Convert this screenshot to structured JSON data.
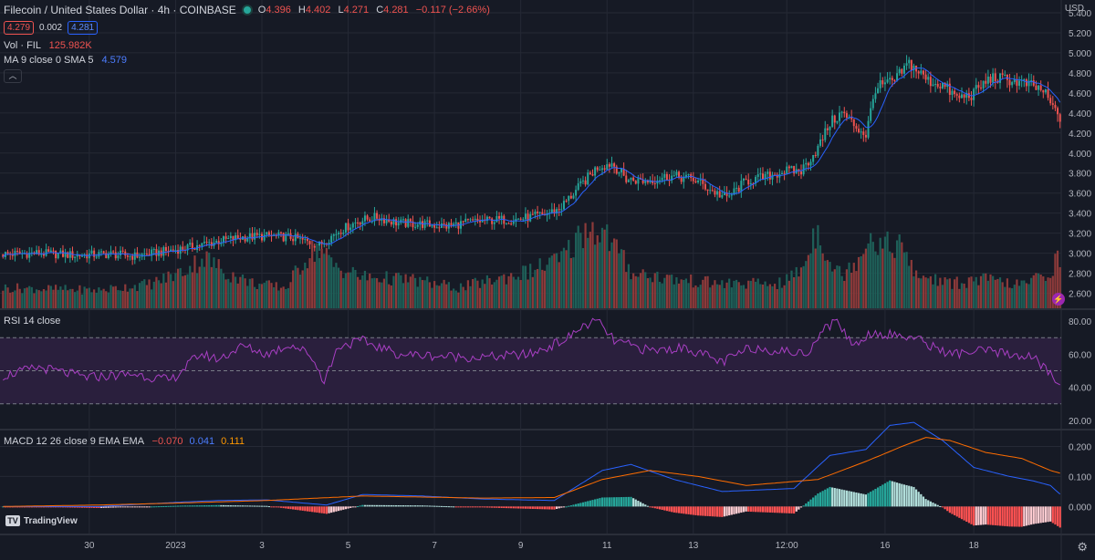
{
  "header": {
    "title": "Filecoin / United States Dollar · 4h · COINBASE",
    "o_label": "O",
    "o": "4.396",
    "h_label": "H",
    "h": "4.402",
    "l_label": "L",
    "l": "4.271",
    "c_label": "C",
    "c": "4.281",
    "change": "−0.117 (−2.66%)",
    "bid": "4.279",
    "spread": "0.002",
    "ask": "4.281",
    "currency": "USD"
  },
  "indicators": {
    "vol_label": "Vol · FIL",
    "vol_value": "125.982K",
    "ma_label": "MA 9 close 0 SMA 5",
    "ma_value": "4.579",
    "rsi_label": "RSI 14 close",
    "macd_label": "MACD 12 26 close 9 EMA EMA",
    "macd_hist": "−0.070",
    "macd_line": "0.041",
    "macd_signal": "0.111"
  },
  "branding": {
    "logo_text": "TradingView",
    "logo_mark": "TV"
  },
  "colors": {
    "up": "#26a69a",
    "down": "#ef5350",
    "ma": "#2962ff",
    "rsi": "#a93fc4",
    "signal": "#ff6d00",
    "macd": "#2962ff",
    "bg": "#161a25",
    "grid": "#252935"
  },
  "chart_data": {
    "type": "candlestick",
    "x_ticks": [
      "30",
      "2023",
      "3",
      "5",
      "7",
      "9",
      "11",
      "13",
      "12:00",
      "16",
      "18"
    ],
    "price_axis": {
      "ylim": [
        2.45,
        5.4
      ],
      "ticks": [
        "5.400",
        "5.200",
        "5.000",
        "4.800",
        "4.600",
        "4.400",
        "4.200",
        "4.000",
        "3.800",
        "3.600",
        "3.400",
        "3.200",
        "3.000",
        "2.800",
        "2.600"
      ]
    },
    "rsi_axis": {
      "ylim": [
        15,
        85
      ],
      "ticks": [
        "80.00",
        "60.00",
        "40.00",
        "20.00"
      ],
      "bands": [
        30,
        50,
        70
      ]
    },
    "macd_axis": {
      "ylim": [
        -0.09,
        0.25
      ],
      "ticks": [
        "0.200",
        "0.100",
        "0.000"
      ]
    },
    "price_anchors": [
      [
        0,
        2.99
      ],
      [
        15,
        3.0
      ],
      [
        30,
        2.98
      ],
      [
        45,
        2.99
      ],
      [
        55,
        2.97
      ],
      [
        68,
        3.02
      ],
      [
        78,
        3.06
      ],
      [
        90,
        3.12
      ],
      [
        100,
        3.16
      ],
      [
        110,
        3.17
      ],
      [
        120,
        3.16
      ],
      [
        132,
        3.08
      ],
      [
        140,
        3.22
      ],
      [
        148,
        3.32
      ],
      [
        156,
        3.36
      ],
      [
        165,
        3.3
      ],
      [
        175,
        3.29
      ],
      [
        185,
        3.27
      ],
      [
        195,
        3.31
      ],
      [
        205,
        3.33
      ],
      [
        215,
        3.34
      ],
      [
        225,
        3.38
      ],
      [
        232,
        3.44
      ],
      [
        240,
        3.65
      ],
      [
        248,
        3.86
      ],
      [
        254,
        3.9
      ],
      [
        260,
        3.74
      ],
      [
        268,
        3.72
      ],
      [
        278,
        3.77
      ],
      [
        288,
        3.74
      ],
      [
        296,
        3.62
      ],
      [
        302,
        3.55
      ],
      [
        310,
        3.72
      ],
      [
        318,
        3.76
      ],
      [
        326,
        3.82
      ],
      [
        333,
        3.82
      ],
      [
        340,
        4.05
      ],
      [
        345,
        4.3
      ],
      [
        350,
        4.4
      ],
      [
        356,
        4.26
      ],
      [
        360,
        4.18
      ],
      [
        364,
        4.65
      ],
      [
        372,
        4.72
      ],
      [
        378,
        4.9
      ],
      [
        386,
        4.72
      ],
      [
        392,
        4.68
      ],
      [
        398,
        4.55
      ],
      [
        404,
        4.58
      ],
      [
        412,
        4.75
      ],
      [
        420,
        4.73
      ],
      [
        428,
        4.68
      ],
      [
        434,
        4.62
      ],
      [
        438,
        4.45
      ],
      [
        441,
        4.36
      ]
    ],
    "volume_anchors": [
      [
        0,
        0.25
      ],
      [
        40,
        0.22
      ],
      [
        62,
        0.3
      ],
      [
        75,
        0.45
      ],
      [
        84,
        0.62
      ],
      [
        94,
        0.42
      ],
      [
        105,
        0.3
      ],
      [
        118,
        0.25
      ],
      [
        126,
        0.6
      ],
      [
        131,
        0.75
      ],
      [
        138,
        0.52
      ],
      [
        150,
        0.38
      ],
      [
        170,
        0.35
      ],
      [
        190,
        0.25
      ],
      [
        205,
        0.35
      ],
      [
        220,
        0.45
      ],
      [
        234,
        0.62
      ],
      [
        242,
        0.95
      ],
      [
        246,
        1.0
      ],
      [
        252,
        0.88
      ],
      [
        262,
        0.45
      ],
      [
        280,
        0.35
      ],
      [
        300,
        0.3
      ],
      [
        325,
        0.3
      ],
      [
        334,
        0.5
      ],
      [
        337,
        0.8
      ],
      [
        340,
        1.0
      ],
      [
        345,
        0.55
      ],
      [
        350,
        0.4
      ],
      [
        356,
        0.6
      ],
      [
        362,
        0.9
      ],
      [
        368,
        0.75
      ],
      [
        374,
        0.8
      ],
      [
        380,
        0.42
      ],
      [
        395,
        0.3
      ],
      [
        410,
        0.35
      ],
      [
        425,
        0.28
      ],
      [
        437,
        0.45
      ],
      [
        441,
        0.65
      ]
    ],
    "rsi_anchors": [
      [
        0,
        47
      ],
      [
        15,
        52
      ],
      [
        35,
        46
      ],
      [
        55,
        48
      ],
      [
        70,
        44
      ],
      [
        82,
        60
      ],
      [
        90,
        57
      ],
      [
        100,
        65
      ],
      [
        110,
        60
      ],
      [
        120,
        66
      ],
      [
        128,
        60
      ],
      [
        134,
        44
      ],
      [
        140,
        65
      ],
      [
        150,
        68
      ],
      [
        165,
        60
      ],
      [
        180,
        59
      ],
      [
        200,
        58
      ],
      [
        220,
        60
      ],
      [
        235,
        69
      ],
      [
        242,
        77
      ],
      [
        248,
        80
      ],
      [
        255,
        68
      ],
      [
        270,
        62
      ],
      [
        285,
        64
      ],
      [
        300,
        55
      ],
      [
        312,
        64
      ],
      [
        325,
        62
      ],
      [
        335,
        60
      ],
      [
        342,
        75
      ],
      [
        348,
        80
      ],
      [
        355,
        65
      ],
      [
        362,
        73
      ],
      [
        370,
        72
      ],
      [
        380,
        70
      ],
      [
        395,
        60
      ],
      [
        410,
        62
      ],
      [
        420,
        60
      ],
      [
        430,
        58
      ],
      [
        437,
        48
      ],
      [
        441,
        40
      ]
    ],
    "macd_anchors": [
      [
        0,
        0.0
      ],
      [
        40,
        0.0
      ],
      [
        75,
        0.015
      ],
      [
        90,
        0.02
      ],
      [
        110,
        0.022
      ],
      [
        135,
        0.005
      ],
      [
        150,
        0.04
      ],
      [
        175,
        0.035
      ],
      [
        200,
        0.025
      ],
      [
        230,
        0.02
      ],
      [
        250,
        0.12
      ],
      [
        262,
        0.14
      ],
      [
        280,
        0.09
      ],
      [
        300,
        0.05
      ],
      [
        330,
        0.06
      ],
      [
        345,
        0.17
      ],
      [
        360,
        0.19
      ],
      [
        370,
        0.27
      ],
      [
        380,
        0.28
      ],
      [
        392,
        0.22
      ],
      [
        405,
        0.13
      ],
      [
        420,
        0.1
      ],
      [
        430,
        0.085
      ],
      [
        437,
        0.07
      ],
      [
        441,
        0.041
      ]
    ],
    "signal_anchors": [
      [
        0,
        0.0
      ],
      [
        40,
        0.005
      ],
      [
        75,
        0.012
      ],
      [
        110,
        0.02
      ],
      [
        150,
        0.035
      ],
      [
        200,
        0.028
      ],
      [
        230,
        0.03
      ],
      [
        250,
        0.09
      ],
      [
        270,
        0.12
      ],
      [
        290,
        0.1
      ],
      [
        310,
        0.07
      ],
      [
        340,
        0.09
      ],
      [
        360,
        0.15
      ],
      [
        375,
        0.2
      ],
      [
        385,
        0.23
      ],
      [
        395,
        0.22
      ],
      [
        410,
        0.18
      ],
      [
        425,
        0.16
      ],
      [
        437,
        0.12
      ],
      [
        441,
        0.111
      ]
    ]
  }
}
